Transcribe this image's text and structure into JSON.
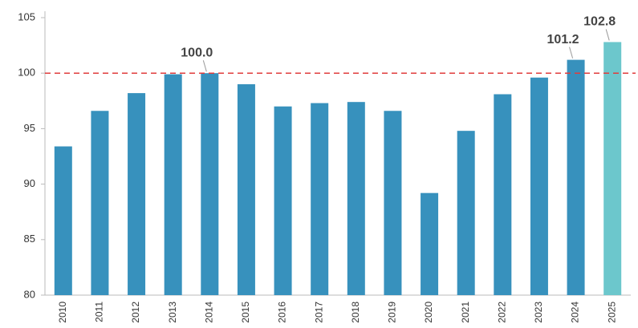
{
  "chart_data": {
    "type": "bar",
    "categories": [
      "2010",
      "2011",
      "2012",
      "2013",
      "2014",
      "2015",
      "2016",
      "2017",
      "2018",
      "2019",
      "2020",
      "2021",
      "2022",
      "2023",
      "2024",
      "2025"
    ],
    "values": [
      93.4,
      96.6,
      98.2,
      99.9,
      100.0,
      99.0,
      97.0,
      97.3,
      97.4,
      96.6,
      89.2,
      94.8,
      98.1,
      99.6,
      101.2,
      102.8
    ],
    "value_labels": [
      null,
      null,
      null,
      null,
      "100.0",
      null,
      null,
      null,
      null,
      null,
      null,
      null,
      null,
      null,
      "101.2",
      "102.8"
    ],
    "colors": [
      "#3791bd",
      "#3791bd",
      "#3791bd",
      "#3791bd",
      "#3791bd",
      "#3791bd",
      "#3791bd",
      "#3791bd",
      "#3791bd",
      "#3791bd",
      "#3791bd",
      "#3791bd",
      "#3791bd",
      "#3791bd",
      "#3791bd",
      "#6cc7cc"
    ],
    "ylim": [
      80,
      105
    ],
    "yticks": [
      80,
      85,
      90,
      95,
      100,
      105
    ],
    "reference_line": {
      "value": 100,
      "color": "#e03c3c"
    }
  }
}
